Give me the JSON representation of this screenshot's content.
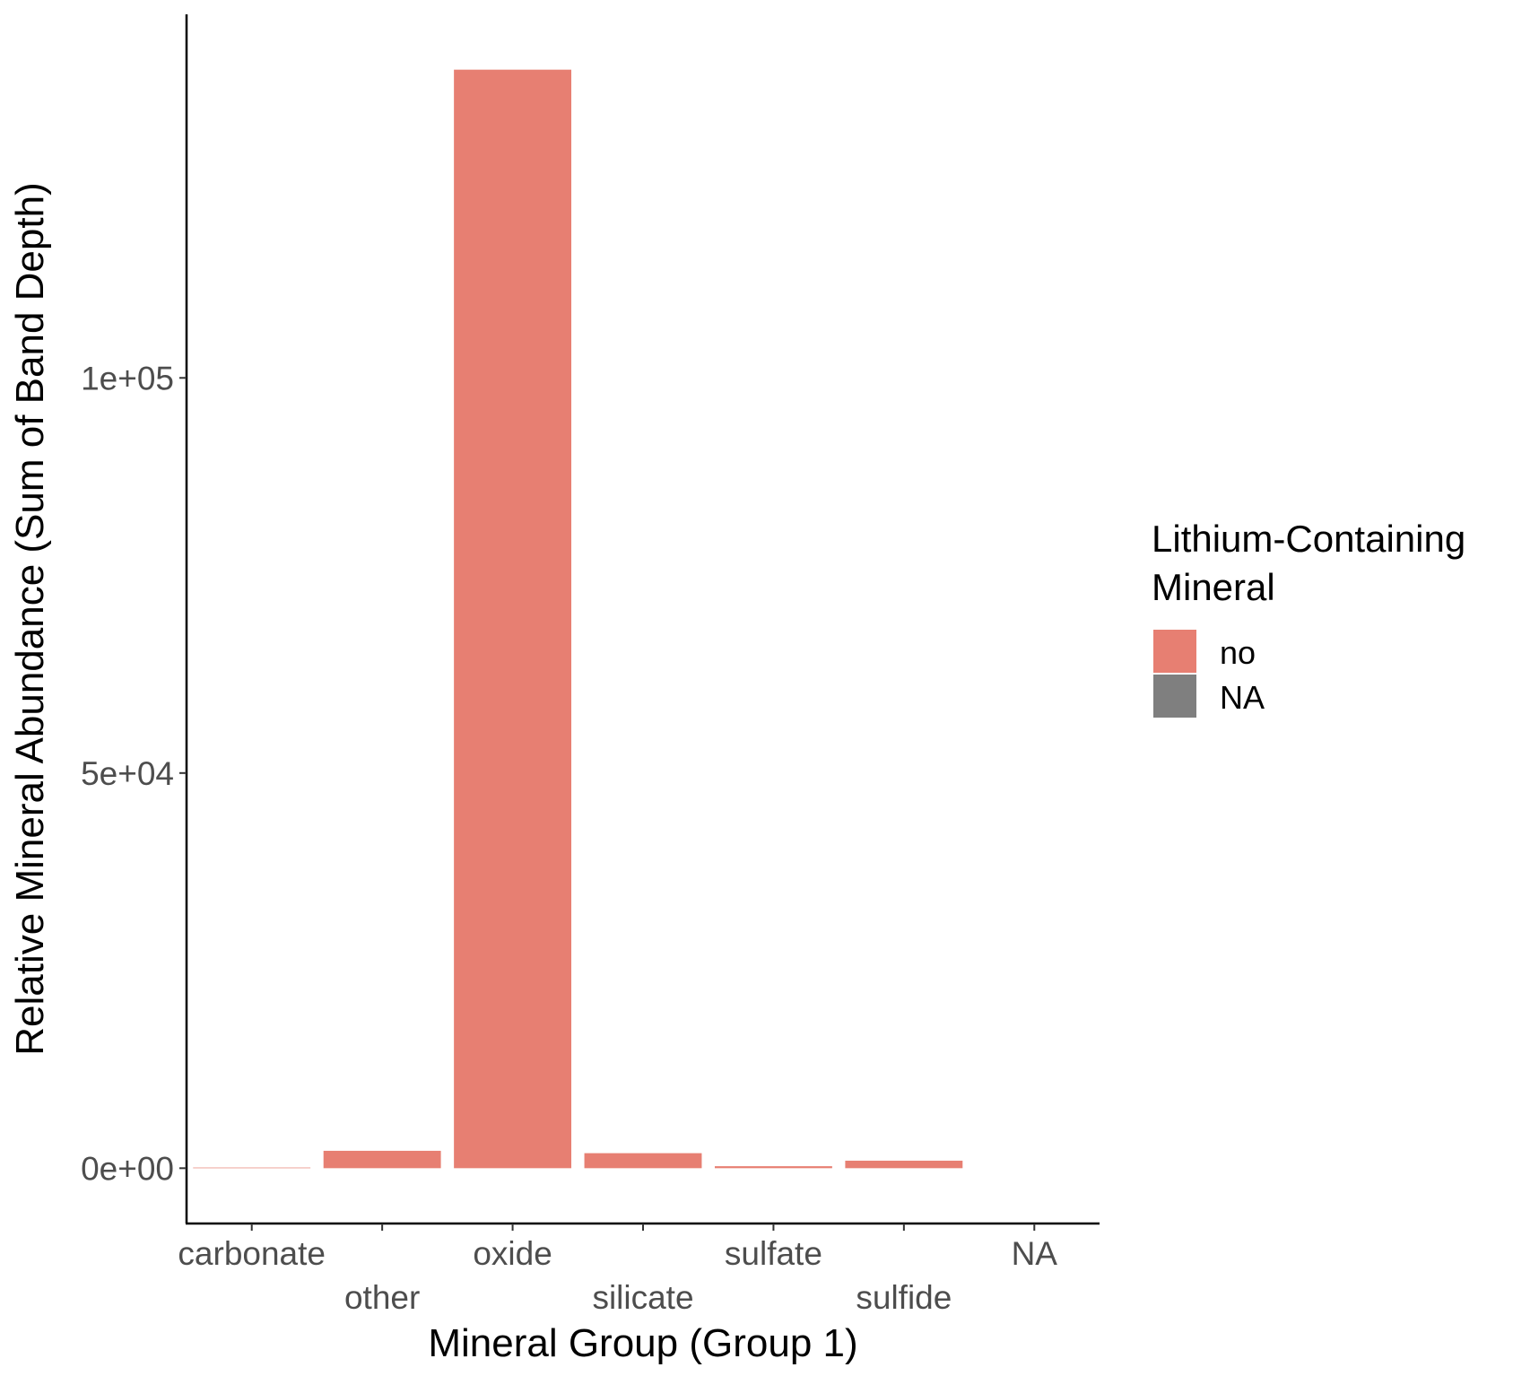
{
  "chart_data": {
    "type": "bar",
    "categories": [
      "carbonate",
      "other",
      "oxide",
      "silicate",
      "sulfate",
      "sulfide",
      "NA"
    ],
    "series": [
      {
        "name": "no",
        "color": "#E77F72",
        "values": [
          80,
          2200,
          139000,
          1900,
          250,
          950,
          0
        ]
      }
    ],
    "xlabel": "Mineral Group (Group 1)",
    "ylabel": "Relative Mineral Abundance (Sum of Band Depth)",
    "ylim": [
      -7000,
      146000
    ],
    "yticks": [
      {
        "value": 0,
        "label": "0e+00"
      },
      {
        "value": 50000,
        "label": "5e+04"
      },
      {
        "value": 100000,
        "label": "1e+05"
      }
    ],
    "grid": false,
    "legend": {
      "title_lines": [
        "Lithium-Containing",
        "Mineral"
      ],
      "placement": "right",
      "entries": [
        {
          "label": "no",
          "color": "#E77F72"
        },
        {
          "label": "NA",
          "color": "#7F7F7F"
        }
      ]
    }
  }
}
